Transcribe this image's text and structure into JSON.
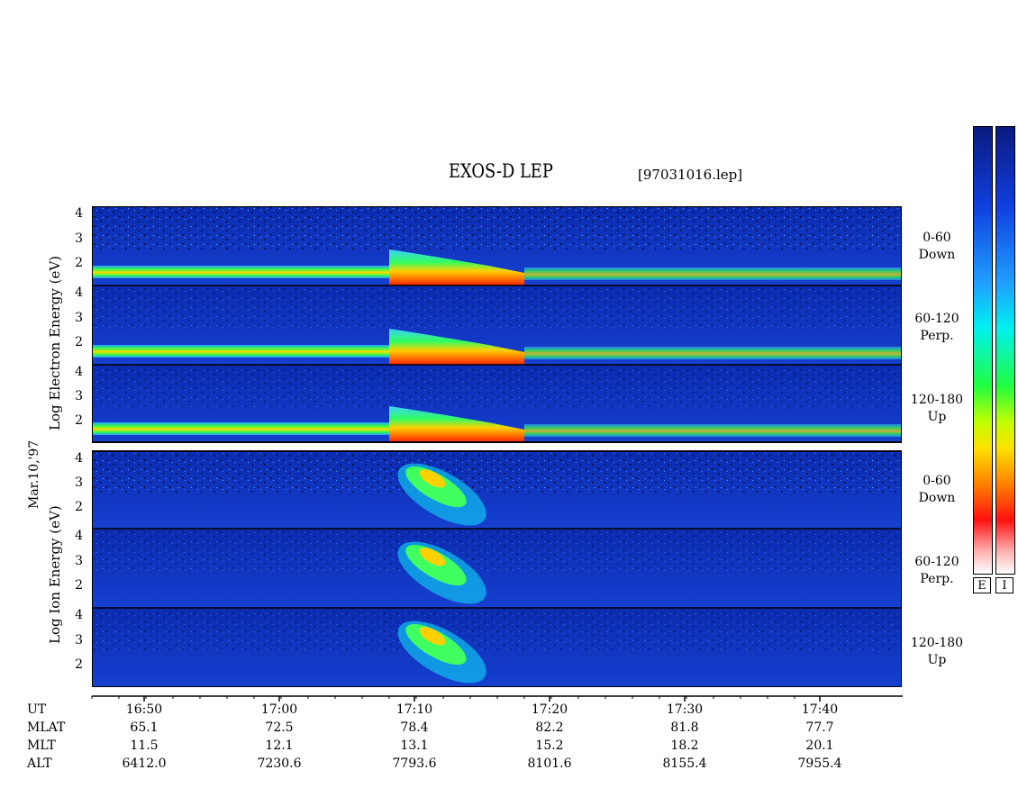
{
  "title": "EXOS-D LEP",
  "filename": "[97031016.lep]",
  "date_label": "Mar.10,'97",
  "electron_ylabel": [
    "Log",
    "Electron",
    "Energy",
    "(eV)"
  ],
  "ion_ylabel": [
    "Log",
    "Ion",
    "Energy",
    "(eV)"
  ],
  "pitch_labels": [
    {
      "range": "0-60",
      "dir": "Down"
    },
    {
      "range": "60-120",
      "dir": "Perp."
    },
    {
      "range": "120-180",
      "dir": "Up"
    }
  ],
  "y_ticks": [
    "4",
    "3",
    "2"
  ],
  "row_labels": [
    "UT",
    "MLAT",
    "MLT",
    "ALT"
  ],
  "time_ticks": [
    "16:50",
    "17:00",
    "17:10",
    "17:20",
    "17:30",
    "17:40"
  ],
  "mlat": [
    "65.1",
    "72.5",
    "78.4",
    "82.2",
    "81.8",
    "77.7"
  ],
  "mlt": [
    "11.5",
    "12.1",
    "13.1",
    "15.2",
    "18.2",
    "20.1"
  ],
  "alt": [
    "6412.0",
    "7230.6",
    "7793.6",
    "8101.6",
    "8155.4",
    "7955.4"
  ],
  "colorbar_labels": [
    "E",
    "I"
  ],
  "chart_data": {
    "type": "heatmap",
    "title": "EXOS-D LEP",
    "x_axis": "UT",
    "x_ticks": [
      "16:50",
      "17:00",
      "17:10",
      "17:20",
      "17:30",
      "17:40"
    ],
    "y_scale": "log10 energy (eV)",
    "y_ticks": [
      2,
      3,
      4
    ],
    "panels": [
      "Electron 0-60 Down",
      "Electron 60-120 Perp.",
      "Electron 120-180 Up",
      "Ion 0-60 Down",
      "Ion 60-120 Perp.",
      "Ion 120-180 Up"
    ]
  }
}
